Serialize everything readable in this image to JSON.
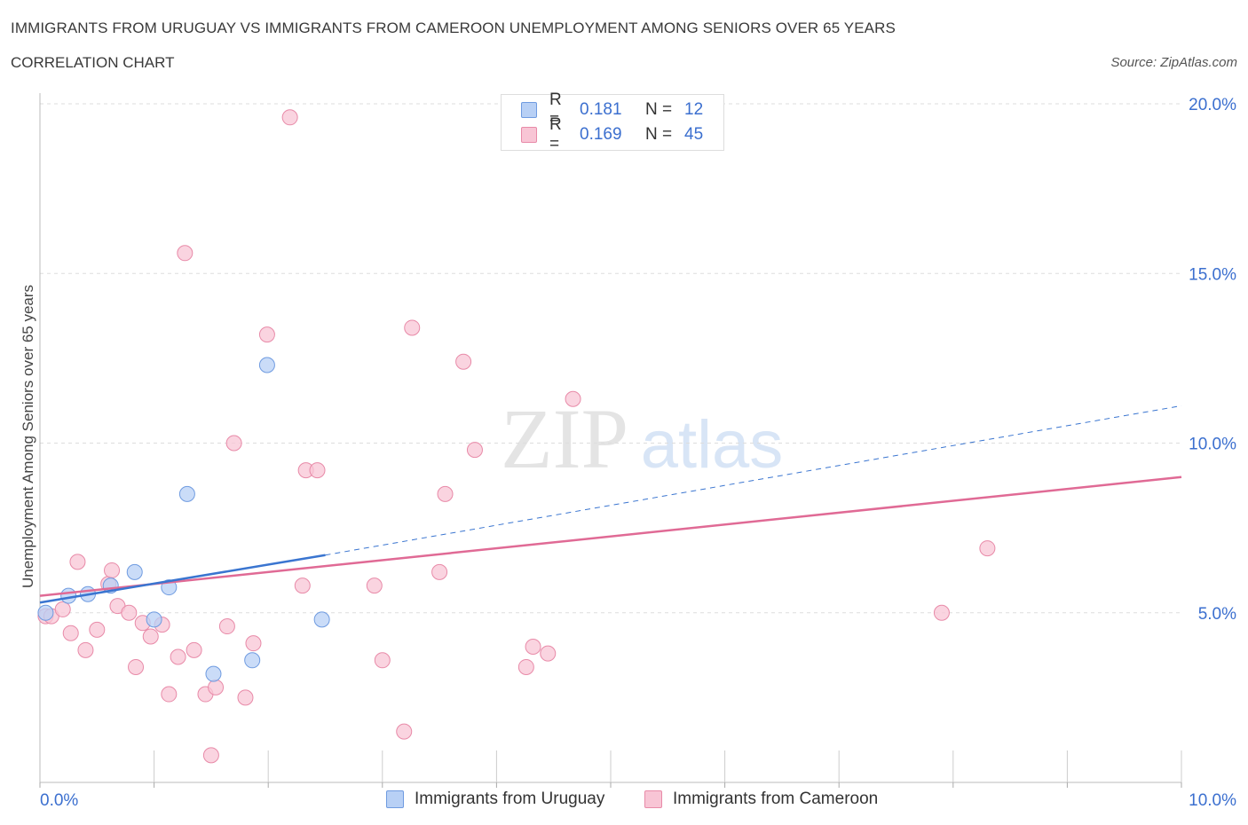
{
  "header": {
    "title": "IMMIGRANTS FROM URUGUAY VS IMMIGRANTS FROM CAMEROON UNEMPLOYMENT AMONG SENIORS OVER 65 YEARS",
    "subtitle": "CORRELATION CHART",
    "source": "Source: ZipAtlas.com"
  },
  "watermark": {
    "zip": "ZIP",
    "atlas": "atlas"
  },
  "colors": {
    "uruguay_fill": "#b8d0f5",
    "uruguay_stroke": "#6f9be0",
    "uruguay_line": "#3a75d0",
    "cameroon_fill": "#f8c5d5",
    "cameroon_stroke": "#e88aa8",
    "cameroon_line": "#e06a95",
    "value_text": "#3b6fcf",
    "grid": "#dddddd"
  },
  "legend_top": {
    "rows": [
      {
        "r_label": "R =",
        "r_value": "0.181",
        "n_label": "N =",
        "n_value": "12"
      },
      {
        "r_label": "R =",
        "r_value": "0.169",
        "n_label": "N =",
        "n_value": "45"
      }
    ]
  },
  "legend_bottom": {
    "items": [
      {
        "label": "Immigrants from Uruguay"
      },
      {
        "label": "Immigrants from Cameroon"
      }
    ]
  },
  "chart_data": {
    "type": "scatter",
    "title": "IMMIGRANTS FROM URUGUAY VS IMMIGRANTS FROM CAMEROON UNEMPLOYMENT AMONG SENIORS OVER 65 YEARS",
    "subtitle": "CORRELATION CHART",
    "xlabel": "",
    "ylabel": "Unemployment Among Seniors over 65 years",
    "xlim": [
      0,
      10
    ],
    "ylim": [
      0,
      20
    ],
    "x_tick_labels": [
      "0.0%",
      "10.0%"
    ],
    "y_ticks": [
      {
        "value": 5,
        "label": "5.0%"
      },
      {
        "value": 10,
        "label": "10.0%"
      },
      {
        "value": 15,
        "label": "15.0%"
      },
      {
        "value": 20,
        "label": "20.0%"
      }
    ],
    "series": [
      {
        "name": "Immigrants from Uruguay",
        "R": 0.181,
        "N": 12,
        "points": [
          [
            0.05,
            5.0
          ],
          [
            0.25,
            5.5
          ],
          [
            0.42,
            5.55
          ],
          [
            0.62,
            5.8
          ],
          [
            0.83,
            6.2
          ],
          [
            1.0,
            4.8
          ],
          [
            1.13,
            5.75
          ],
          [
            1.29,
            8.5
          ],
          [
            1.52,
            3.2
          ],
          [
            1.86,
            3.6
          ],
          [
            1.99,
            12.3
          ],
          [
            2.47,
            4.8
          ]
        ],
        "trend": {
          "x_start": 0.0,
          "y_start": 5.3,
          "x_solid_end": 2.5,
          "y_solid_end": 6.7,
          "x_end": 10.0,
          "y_end": 11.1
        }
      },
      {
        "name": "Immigrants from Cameroon",
        "R": 0.169,
        "N": 45,
        "points": [
          [
            0.05,
            4.9
          ],
          [
            0.1,
            4.9
          ],
          [
            0.2,
            5.1
          ],
          [
            0.27,
            4.4
          ],
          [
            0.33,
            6.5
          ],
          [
            0.4,
            3.9
          ],
          [
            0.5,
            4.5
          ],
          [
            0.6,
            5.85
          ],
          [
            0.63,
            6.25
          ],
          [
            0.68,
            5.2
          ],
          [
            0.78,
            5.0
          ],
          [
            0.84,
            3.4
          ],
          [
            0.9,
            4.7
          ],
          [
            0.97,
            4.3
          ],
          [
            1.07,
            4.65
          ],
          [
            1.13,
            2.6
          ],
          [
            1.21,
            3.7
          ],
          [
            1.27,
            15.6
          ],
          [
            1.35,
            3.9
          ],
          [
            1.45,
            2.6
          ],
          [
            1.5,
            0.8
          ],
          [
            1.54,
            2.8
          ],
          [
            1.64,
            4.6
          ],
          [
            1.7,
            10.0
          ],
          [
            1.8,
            2.5
          ],
          [
            1.87,
            4.1
          ],
          [
            1.99,
            13.2
          ],
          [
            2.19,
            19.6
          ],
          [
            2.3,
            5.8
          ],
          [
            2.33,
            9.2
          ],
          [
            2.43,
            9.2
          ],
          [
            2.93,
            5.8
          ],
          [
            3.0,
            3.6
          ],
          [
            3.19,
            1.5
          ],
          [
            3.26,
            13.4
          ],
          [
            3.5,
            6.2
          ],
          [
            3.55,
            8.5
          ],
          [
            3.71,
            12.4
          ],
          [
            3.81,
            9.8
          ],
          [
            4.26,
            3.4
          ],
          [
            4.32,
            4.0
          ],
          [
            4.45,
            3.8
          ],
          [
            4.67,
            11.3
          ],
          [
            8.3,
            6.9
          ],
          [
            7.9,
            5.0
          ]
        ],
        "trend": {
          "x_start": 0.0,
          "y_start": 5.5,
          "x_end": 10.0,
          "y_end": 9.0
        }
      }
    ],
    "legend": "top-center",
    "grid": true
  }
}
